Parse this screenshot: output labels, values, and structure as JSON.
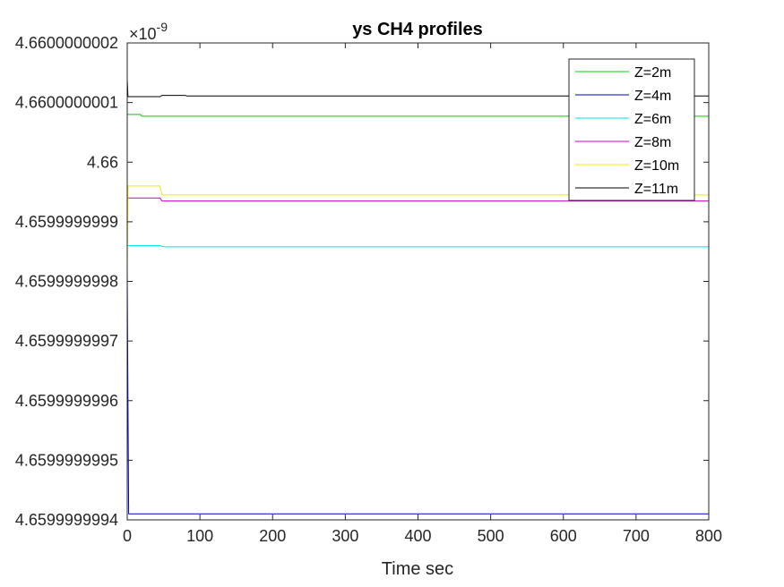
{
  "chart_data": {
    "type": "line",
    "title": "ys CH4 profiles",
    "xlabel": "Time sec",
    "ylabel": "",
    "y_exponent_base": "×10",
    "y_exponent_power": "-9",
    "xlim": [
      0,
      800
    ],
    "ylim": [
      4.6599999994,
      4.6600000002
    ],
    "x_ticks": [
      0,
      100,
      200,
      300,
      400,
      500,
      600,
      700,
      800
    ],
    "x_tick_labels": [
      "0",
      "100",
      "200",
      "300",
      "400",
      "500",
      "600",
      "700",
      "800"
    ],
    "y_ticks": [
      4.6599999994,
      4.6599999995,
      4.6599999996,
      4.6599999997,
      4.6599999998,
      4.6599999999,
      4.66,
      4.6600000001,
      4.6600000002
    ],
    "y_tick_labels": [
      "4.6599999994",
      "4.6599999995",
      "4.6599999996",
      "4.6599999997",
      "4.6599999998",
      "4.6599999999",
      "4.66",
      "4.6600000001",
      "4.6600000002"
    ],
    "grid": false,
    "legend_position": "top-right",
    "series": [
      {
        "name": "Z=2m",
        "color": "#00cc00",
        "points": [
          [
            0,
            4.66000000008
          ],
          [
            2,
            4.66000000008
          ],
          [
            18,
            4.66000000008
          ],
          [
            20,
            4.660000000077
          ],
          [
            800,
            4.660000000077
          ]
        ]
      },
      {
        "name": "Z=4m",
        "color": "#0000cc",
        "points": [
          [
            0,
            4.65999999982
          ],
          [
            1,
            4.6599999996
          ],
          [
            2,
            4.65999999941
          ],
          [
            800,
            4.65999999941
          ]
        ]
      },
      {
        "name": "Z=6m",
        "color": "#00e5e5",
        "points": [
          [
            0,
            4.65999999986
          ],
          [
            45,
            4.65999999986
          ],
          [
            50,
            4.659999999858
          ],
          [
            800,
            4.659999999858
          ]
        ]
      },
      {
        "name": "Z=8m",
        "color": "#cc00cc",
        "points": [
          [
            0,
            4.65999999994
          ],
          [
            45,
            4.65999999994
          ],
          [
            48,
            4.659999999935
          ],
          [
            800,
            4.659999999935
          ]
        ]
      },
      {
        "name": "Z=10m",
        "color": "#eeee00",
        "points": [
          [
            0,
            4.65999999982
          ],
          [
            1,
            4.65999999996
          ],
          [
            3,
            4.65999999996
          ],
          [
            45,
            4.65999999996
          ],
          [
            48,
            4.659999999945
          ],
          [
            800,
            4.659999999945
          ]
        ]
      },
      {
        "name": "Z=11m",
        "color": "#000000",
        "points": [
          [
            0,
            4.66000000014
          ],
          [
            1,
            4.66000000011
          ],
          [
            45,
            4.66000000011
          ],
          [
            48,
            4.660000000112
          ],
          [
            80,
            4.660000000112
          ],
          [
            82,
            4.660000000111
          ],
          [
            800,
            4.660000000111
          ]
        ]
      }
    ]
  }
}
